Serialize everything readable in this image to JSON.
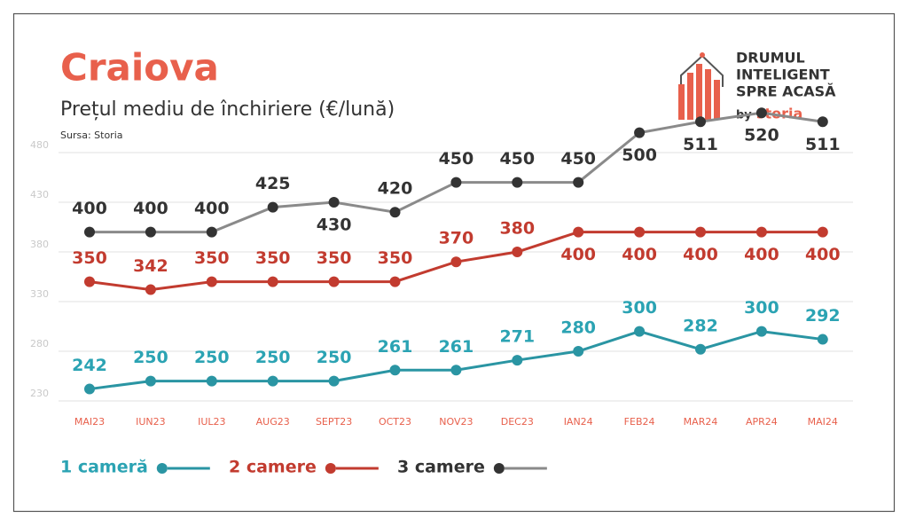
{
  "chart_data": {
    "type": "line",
    "title": "Craiova",
    "subtitle": "Prețul mediu de închiriere (€/lună)",
    "source": "Sursa: Storia",
    "logo": {
      "lines": [
        "DRUMUL",
        "INTELIGENT",
        "SPRE ACASĂ"
      ],
      "by": "by",
      "brand": "storia"
    },
    "categories": [
      "MAI23",
      "IUN23",
      "IUL23",
      "AUG23",
      "SEPT23",
      "OCT23",
      "NOV23",
      "DEC23",
      "IAN24",
      "FEB24",
      "MAR24",
      "APR24",
      "MAI24"
    ],
    "series": [
      {
        "name": "1 cameră",
        "color": "#2a95a3",
        "label_color": "#2ba3b3",
        "values": [
          242,
          250,
          250,
          250,
          250,
          261,
          261,
          271,
          280,
          300,
          282,
          300,
          292
        ]
      },
      {
        "name": "2 camere",
        "color": "#c23b2f",
        "label_color": "#c23b2f",
        "values": [
          350,
          342,
          350,
          350,
          350,
          350,
          370,
          380,
          400,
          400,
          400,
          400,
          400
        ]
      },
      {
        "name": "3 camere",
        "color": "#8a8a8a",
        "label_color": "#333333",
        "point_color": "#333333",
        "values": [
          400,
          400,
          400,
          425,
          430,
          420,
          450,
          450,
          450,
          500,
          511,
          520,
          511
        ]
      }
    ],
    "ylim": [
      225,
      530
    ],
    "yticks": [
      230,
      280,
      330,
      380,
      430,
      480
    ],
    "grid": true
  }
}
